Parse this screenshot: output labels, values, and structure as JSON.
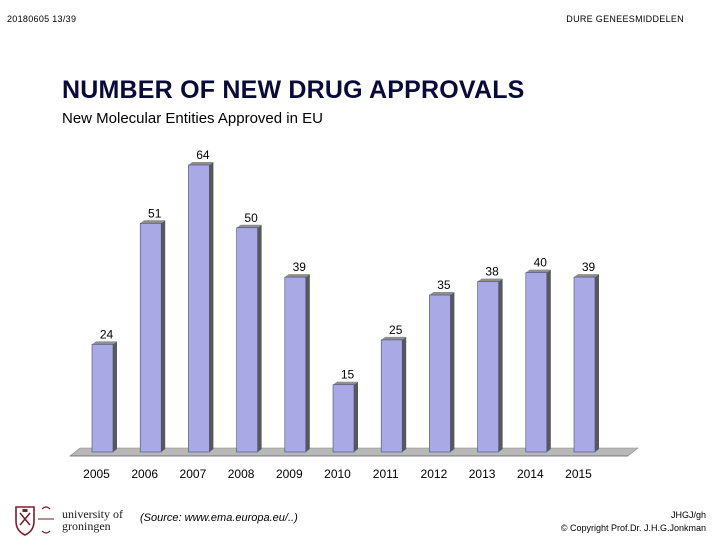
{
  "header": {
    "left_text": "20180605   13/39",
    "right_text": "DURE GENEESMIDDELEN"
  },
  "slide": {
    "title": "NUMBER OF NEW DRUG APPROVALS",
    "subtitle": "New Molecular Entities Approved in EU"
  },
  "chart_data": {
    "type": "bar",
    "title": "",
    "xlabel": "",
    "ylabel": "",
    "categories": [
      "2005",
      "2006",
      "2007",
      "2008",
      "2009",
      "2010",
      "2011",
      "2012",
      "2013",
      "2014",
      "2015"
    ],
    "series": [
      {
        "values": [
          24,
          51,
          64,
          50,
          39,
          15,
          25,
          35,
          38,
          40,
          39
        ],
        "labels_shown": [
          "24",
          "51",
          "64",
          "50",
          "39",
          "15",
          "25",
          "35",
          "38",
          "40",
          "39"
        ]
      }
    ],
    "ylim": [
      0,
      70
    ],
    "grid": false,
    "legend": "none",
    "style": "3d-bars",
    "colors": {
      "front": "#a9a9e6",
      "side": "#585858",
      "top": "#8e8e8e",
      "floor": "#b8b8b8"
    }
  },
  "footer": {
    "logo_line1": "university of",
    "logo_line2": "groningen",
    "source": "(Source: www.ema.europa.eu/..)",
    "credit_line1": "JHGJ/gh",
    "credit_line2": "© Copyright Prof.Dr. J.H.G.Jonkman"
  }
}
